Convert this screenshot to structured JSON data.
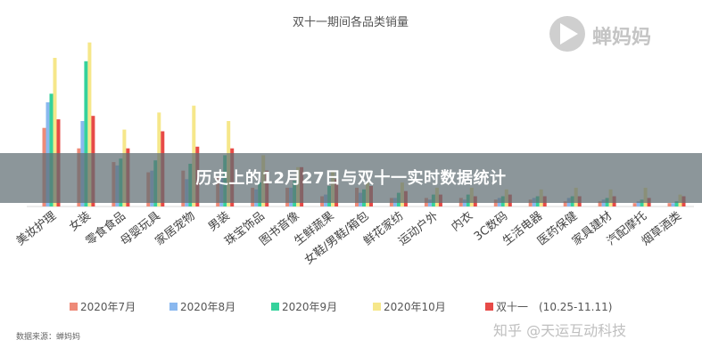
{
  "banner": {
    "title": "历史上的12月27日与双十一实时数据统计"
  },
  "logo": {
    "text": "蝉妈妈"
  },
  "watermark": {
    "text": "知乎 @天运互动科技"
  },
  "source": "数据来源：蝉妈妈",
  "colors": {
    "jul": "#ee8a78",
    "aug": "#8ab8ef",
    "sep": "#35d29c",
    "oct": "#f6e78a",
    "double11": "#e74a47"
  },
  "chart_data": {
    "type": "bar",
    "title": "双十一期间各品类销量",
    "categories": [
      "美妆护理",
      "女装",
      "零食食品",
      "母婴玩具",
      "家居宠物",
      "男装",
      "珠宝饰品",
      "图书音像",
      "生鲜蔬果",
      "女鞋/男鞋/箱包",
      "鲜花家纺",
      "运动户外",
      "内衣",
      "3C数码",
      "生活电器",
      "医药保健",
      "家具建材",
      "汽配摩托",
      "烟草酒类"
    ],
    "ylim": [
      0,
      100
    ],
    "grid": false,
    "legend_position": "bottom",
    "series": [
      {
        "name": "2020年7月",
        "values": [
          46,
          34,
          26,
          20,
          21,
          17,
          11,
          11,
          6,
          11,
          5,
          5,
          5,
          4,
          4,
          3,
          3,
          2,
          2
        ]
      },
      {
        "name": "2020年8月",
        "values": [
          61,
          50,
          24,
          21,
          16,
          18,
          10,
          11,
          7,
          8,
          5,
          4,
          4,
          5,
          5,
          5,
          4,
          3,
          2
        ]
      },
      {
        "name": "2020年9月",
        "values": [
          66,
          85,
          28,
          27,
          25,
          30,
          14,
          15,
          12,
          10,
          8,
          7,
          7,
          6,
          6,
          6,
          5,
          4,
          3
        ]
      },
      {
        "name": "2020年10月",
        "values": [
          87,
          96,
          45,
          55,
          59,
          50,
          30,
          23,
          21,
          14,
          14,
          11,
          11,
          10,
          10,
          11,
          10,
          11,
          7
        ]
      },
      {
        "name": "双十一　(10.25-11.11)",
        "values": [
          51,
          53,
          34,
          44,
          35,
          34,
          21,
          23,
          16,
          12,
          9,
          7,
          6,
          7,
          6,
          6,
          6,
          5,
          6
        ]
      }
    ]
  }
}
